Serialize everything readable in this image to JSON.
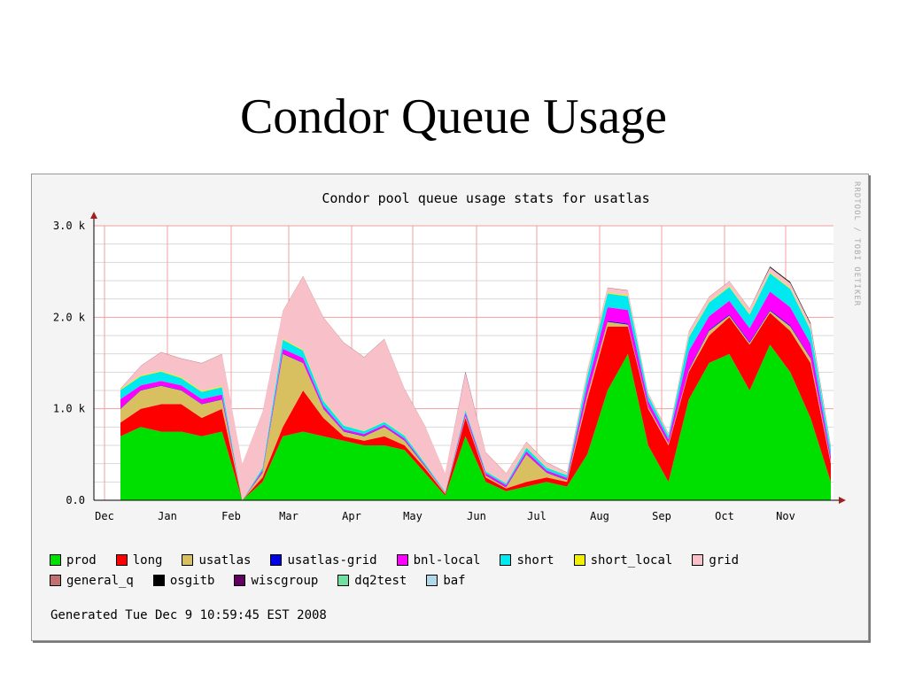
{
  "slide": {
    "title": "Condor Queue Usage"
  },
  "graph": {
    "generated": "Generated Tue Dec 9 10:59:45 EST 2008",
    "watermark": "RRDTOOL / TOBI OETIKER"
  },
  "chart_data": {
    "type": "area",
    "stacked": true,
    "title": "Condor pool queue usage stats for usatlas",
    "xlabel": "",
    "ylabel": "",
    "ylim": [
      0,
      3000
    ],
    "y_ticks": [
      0,
      1000,
      2000,
      3000
    ],
    "y_tick_labels": [
      "0.0",
      "1.0 k",
      "2.0 k",
      "3.0 k"
    ],
    "x_ticks": [
      "Dec",
      "Jan",
      "Feb",
      "Mar",
      "Apr",
      "May",
      "Jun",
      "Jul",
      "Aug",
      "Sep",
      "Oct",
      "Nov"
    ],
    "grid": true,
    "legend_position": "bottom",
    "x": [
      "Dec-10",
      "Dec-20",
      "Jan-1",
      "Jan-10",
      "Jan-20",
      "Feb-1",
      "Feb-10",
      "Feb-20",
      "Mar-1",
      "Mar-10",
      "Mar-20",
      "Apr-1",
      "Apr-10",
      "Apr-20",
      "May-1",
      "May-10",
      "May-20",
      "Jun-1",
      "Jun-10",
      "Jun-20",
      "Jul-1",
      "Jul-10",
      "Jul-20",
      "Aug-1",
      "Aug-10",
      "Aug-20",
      "Sep-1",
      "Sep-10",
      "Sep-20",
      "Oct-1",
      "Oct-10",
      "Oct-20",
      "Nov-1",
      "Nov-10",
      "Nov-20",
      "Dec-1"
    ],
    "series": [
      {
        "name": "prod",
        "color": "#00e000",
        "values": [
          700,
          800,
          750,
          750,
          700,
          750,
          0,
          200,
          700,
          750,
          700,
          650,
          600,
          600,
          550,
          300,
          50,
          700,
          200,
          100,
          150,
          200,
          150,
          500,
          1200,
          1600,
          600,
          200,
          1100,
          1500,
          1600,
          1200,
          1700,
          1400,
          900,
          200
        ]
      },
      {
        "name": "long",
        "color": "#ff0000",
        "values": [
          150,
          200,
          300,
          300,
          200,
          250,
          0,
          50,
          100,
          450,
          200,
          50,
          50,
          100,
          50,
          50,
          20,
          200,
          50,
          30,
          50,
          50,
          50,
          600,
          700,
          300,
          400,
          400,
          300,
          300,
          400,
          500,
          350,
          450,
          600,
          200
        ]
      },
      {
        "name": "usatlas",
        "color": "#d8c060",
        "values": [
          150,
          200,
          200,
          150,
          150,
          100,
          0,
          50,
          800,
          300,
          100,
          50,
          50,
          100,
          50,
          20,
          10,
          20,
          20,
          10,
          300,
          50,
          20,
          50,
          50,
          20,
          20,
          20,
          20,
          50,
          20,
          20,
          20,
          50,
          50,
          20
        ]
      },
      {
        "name": "usatlas-grid",
        "color": "#0000e0",
        "values": [
          5,
          5,
          5,
          5,
          5,
          5,
          0,
          5,
          5,
          5,
          5,
          5,
          5,
          5,
          5,
          5,
          0,
          5,
          5,
          5,
          5,
          5,
          5,
          5,
          10,
          10,
          5,
          5,
          10,
          10,
          10,
          10,
          10,
          10,
          10,
          5
        ]
      },
      {
        "name": "bnl-local",
        "color": "#ff00ff",
        "values": [
          100,
          50,
          50,
          50,
          50,
          50,
          0,
          20,
          50,
          50,
          30,
          20,
          20,
          20,
          20,
          10,
          5,
          30,
          20,
          20,
          30,
          20,
          20,
          100,
          150,
          150,
          60,
          40,
          200,
          150,
          150,
          150,
          200,
          200,
          150,
          50
        ]
      },
      {
        "name": "short",
        "color": "#00e8f0",
        "values": [
          100,
          100,
          100,
          80,
          80,
          80,
          0,
          30,
          100,
          80,
          50,
          40,
          30,
          30,
          30,
          20,
          10,
          30,
          20,
          20,
          40,
          30,
          30,
          100,
          150,
          150,
          60,
          40,
          150,
          150,
          150,
          150,
          200,
          200,
          150,
          80
        ]
      },
      {
        "name": "short_local",
        "color": "#f0f000",
        "values": [
          10,
          10,
          10,
          10,
          10,
          10,
          0,
          5,
          10,
          10,
          10,
          5,
          5,
          5,
          5,
          5,
          0,
          5,
          5,
          5,
          10,
          5,
          5,
          10,
          10,
          10,
          5,
          5,
          10,
          10,
          10,
          10,
          10,
          10,
          10,
          5
        ]
      },
      {
        "name": "grid",
        "color": "#f8c0c8",
        "values": [
          0,
          100,
          200,
          200,
          300,
          350,
          400,
          600,
          300,
          800,
          900,
          900,
          800,
          900,
          500,
          400,
          200,
          400,
          200,
          100,
          50,
          50,
          20,
          50,
          50,
          50,
          20,
          20,
          50,
          50,
          50,
          50,
          50,
          50,
          50,
          20
        ]
      },
      {
        "name": "general_q",
        "color": "#c07070",
        "values": [
          5,
          5,
          5,
          5,
          5,
          5,
          0,
          5,
          5,
          5,
          5,
          5,
          5,
          5,
          5,
          5,
          0,
          5,
          5,
          5,
          5,
          5,
          5,
          5,
          5,
          5,
          5,
          5,
          5,
          5,
          5,
          5,
          5,
          5,
          5,
          5
        ]
      },
      {
        "name": "osgitb",
        "color": "#000000",
        "values": [
          0,
          0,
          0,
          0,
          0,
          0,
          0,
          0,
          0,
          0,
          0,
          0,
          0,
          0,
          0,
          0,
          0,
          0,
          0,
          0,
          0,
          0,
          0,
          0,
          0,
          0,
          0,
          0,
          0,
          0,
          0,
          0,
          10,
          10,
          10,
          5
        ]
      },
      {
        "name": "wiscgroup",
        "color": "#600060",
        "values": [
          0,
          0,
          0,
          0,
          0,
          0,
          0,
          0,
          0,
          0,
          0,
          0,
          0,
          0,
          0,
          0,
          0,
          10,
          0,
          0,
          0,
          0,
          0,
          0,
          0,
          0,
          0,
          0,
          0,
          0,
          0,
          0,
          0,
          0,
          0,
          0
        ]
      },
      {
        "name": "dq2test",
        "color": "#70e0a0",
        "values": [
          0,
          0,
          0,
          0,
          0,
          0,
          0,
          0,
          0,
          0,
          0,
          0,
          0,
          0,
          0,
          0,
          0,
          0,
          0,
          0,
          0,
          0,
          0,
          0,
          0,
          0,
          0,
          0,
          0,
          0,
          0,
          0,
          0,
          0,
          0,
          0
        ]
      },
      {
        "name": "baf",
        "color": "#b0d8e8",
        "values": [
          0,
          0,
          0,
          0,
          0,
          0,
          0,
          0,
          0,
          0,
          0,
          0,
          0,
          0,
          0,
          0,
          0,
          0,
          0,
          0,
          0,
          0,
          0,
          0,
          0,
          0,
          0,
          0,
          0,
          0,
          0,
          0,
          0,
          0,
          0,
          0
        ]
      }
    ]
  }
}
